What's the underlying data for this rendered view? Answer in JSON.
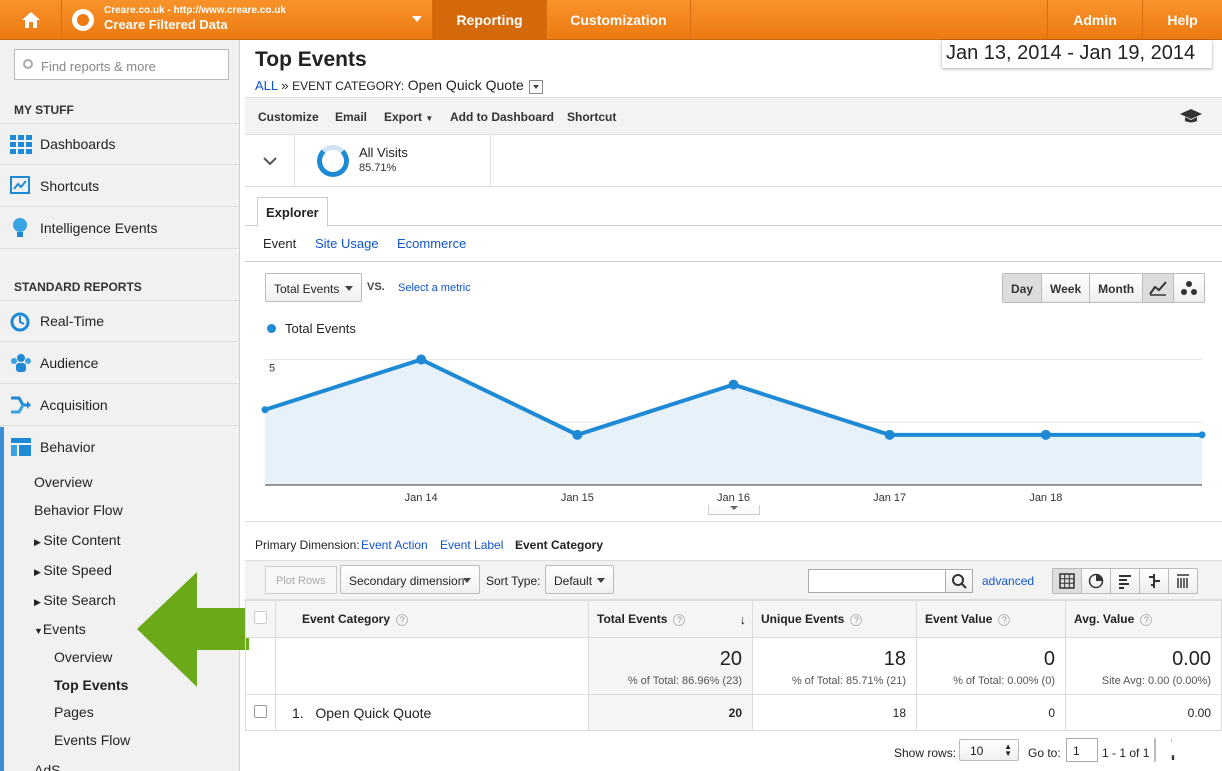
{
  "topbar": {
    "account_url": "Creare.co.uk - http://www.creare.co.uk",
    "account_view": "Creare Filtered Data",
    "nav": {
      "reporting": "Reporting",
      "customization": "Customization",
      "admin": "Admin",
      "help": "Help"
    }
  },
  "sidebar": {
    "search_placeholder": "Find reports & more",
    "my_stuff_title": "MY STUFF",
    "my_stuff": [
      "Dashboards",
      "Shortcuts",
      "Intelligence Events"
    ],
    "standard_title": "STANDARD REPORTS",
    "standard": [
      "Real-Time",
      "Audience",
      "Acquisition",
      "Behavior"
    ],
    "behavior_sub": [
      "Overview",
      "Behavior Flow",
      "Site Content",
      "Site Speed",
      "Site Search",
      "Events"
    ],
    "events_sub": [
      "Overview",
      "Top Events",
      "Pages",
      "Events Flow"
    ],
    "more": "AdS..."
  },
  "page": {
    "title": "Top Events",
    "date_range": "Jan 13, 2014 - Jan 19, 2014",
    "breadcrumb": {
      "all": "ALL",
      "sep": "»",
      "label": "EVENT CATEGORY:",
      "value": "Open Quick Quote"
    }
  },
  "toolbar": {
    "customize": "Customize",
    "email": "Email",
    "export": "Export",
    "add_dashboard": "Add to Dashboard",
    "shortcut": "Shortcut"
  },
  "segment": {
    "name": "All Visits",
    "percent": "85.71%"
  },
  "tabs": {
    "explorer": "Explorer",
    "sub": [
      "Event",
      "Site Usage",
      "Ecommerce"
    ]
  },
  "chart_controls": {
    "metric": "Total Events",
    "vs": "VS.",
    "select_metric": "Select a metric",
    "ranges": [
      "Day",
      "Week",
      "Month"
    ],
    "active_range": "Day"
  },
  "chart_data": {
    "type": "area",
    "legend": "Total Events",
    "color": "#1e8ad6",
    "fill": "#e7f1fa",
    "x": [
      "Jan 13",
      "Jan 14",
      "Jan 15",
      "Jan 16",
      "Jan 17",
      "Jan 18",
      "Jan 19"
    ],
    "x_ticks": [
      "Jan 14",
      "Jan 15",
      "Jan 16",
      "Jan 17",
      "Jan 18"
    ],
    "values": [
      3,
      5,
      2,
      4,
      2,
      2,
      2
    ],
    "y_ticks": [
      "5",
      "2.5"
    ],
    "ylim": [
      0,
      5.5
    ]
  },
  "primary_dimension": {
    "label": "Primary Dimension:",
    "options": [
      "Event Action",
      "Event Label",
      "Event Category"
    ]
  },
  "table_toolbar": {
    "plot_rows": "Plot Rows",
    "secondary": "Secondary dimension",
    "sort_type": "Sort Type:",
    "sort_value": "Default",
    "advanced": "advanced"
  },
  "table": {
    "columns": [
      "Event Category",
      "Total Events",
      "Unique Events",
      "Event Value",
      "Avg. Value"
    ],
    "totals": [
      {
        "value": "20",
        "sub": "% of Total: 86.96% (23)"
      },
      {
        "value": "18",
        "sub": "% of Total: 85.71% (21)"
      },
      {
        "value": "0",
        "sub": "% of Total: 0.00% (0)"
      },
      {
        "value": "0.00",
        "sub": "Site Avg: 0.00 (0.00%)"
      }
    ],
    "rows": [
      {
        "index": "1.",
        "category": "Open Quick Quote",
        "total": "20",
        "unique": "18",
        "value": "0",
        "avg": "0.00"
      }
    ]
  },
  "pager": {
    "show_rows": "Show rows:",
    "rows_value": "10",
    "goto": "Go to:",
    "goto_value": "1",
    "range": "1 - 1 of 1"
  }
}
